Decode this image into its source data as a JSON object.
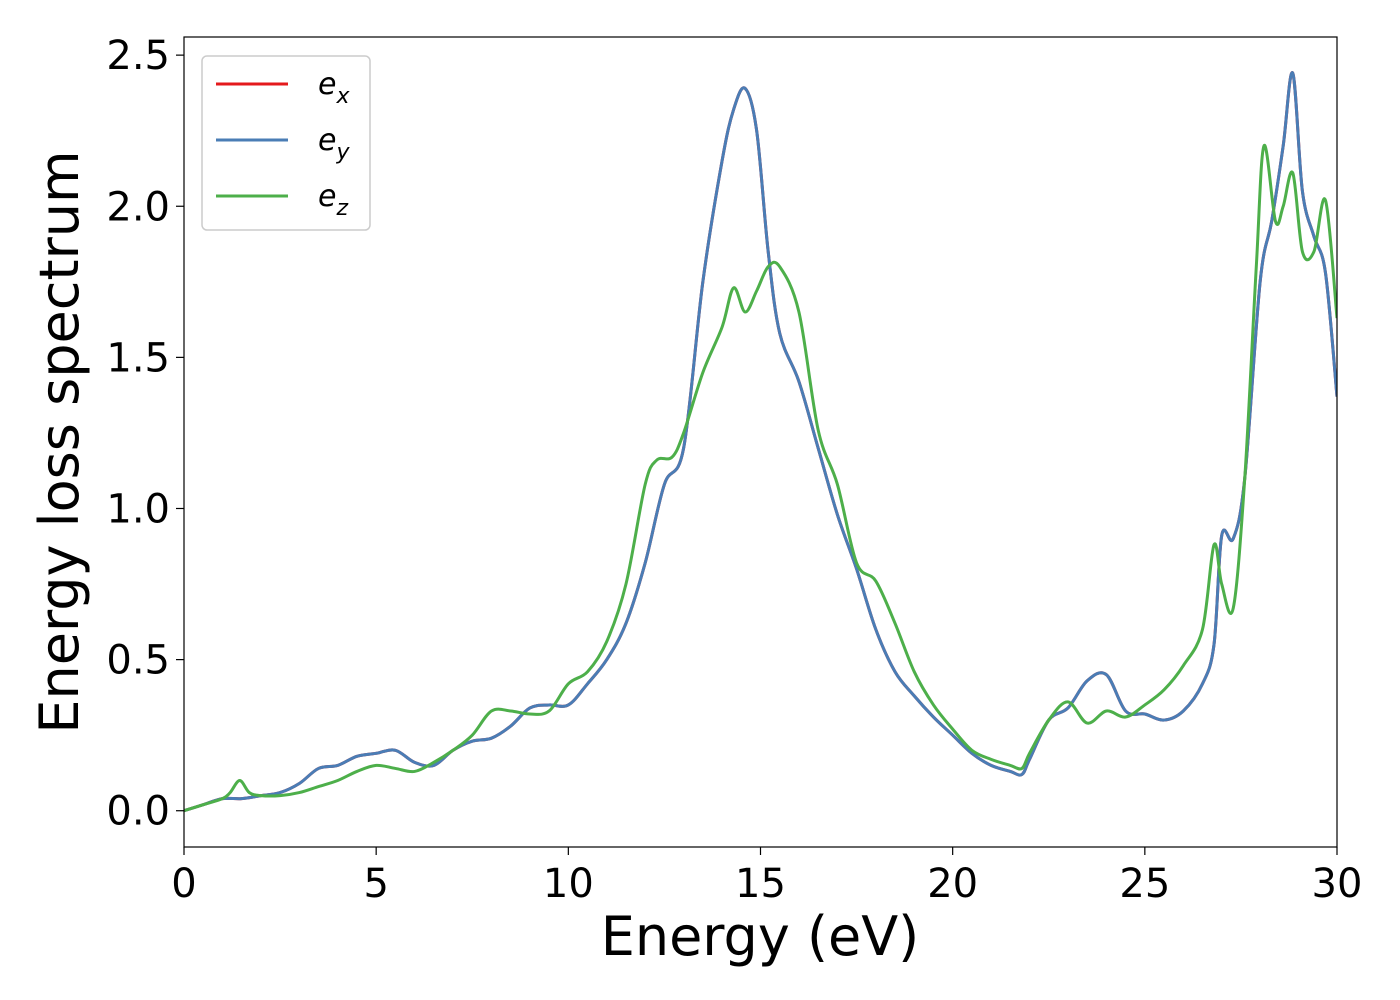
{
  "chart_data": {
    "type": "line",
    "title": "",
    "xlabel": "Energy (eV)",
    "ylabel": "Energy loss spectrum",
    "xlim": [
      0,
      30
    ],
    "ylim": [
      -0.12,
      2.56
    ],
    "xticks": [
      0,
      5,
      10,
      15,
      20,
      25,
      30
    ],
    "xtick_labels": [
      "0",
      "5",
      "10",
      "15",
      "20",
      "25",
      "30"
    ],
    "yticks": [
      0.0,
      0.5,
      1.0,
      1.5,
      2.0,
      2.5
    ],
    "ytick_labels": [
      "0.0",
      "0.5",
      "1.0",
      "1.5",
      "2.0",
      "2.5"
    ],
    "grid": false,
    "legend_position": "top-left",
    "series": [
      {
        "name": "e_x",
        "label_base": "e",
        "label_sub": "x",
        "color": "#e41a1c",
        "x": [
          0,
          0.5,
          1.0,
          1.5,
          2.0,
          2.5,
          3.0,
          3.5,
          4.0,
          4.5,
          5.0,
          5.5,
          6.0,
          6.5,
          7.0,
          7.5,
          8.0,
          8.5,
          9.0,
          9.5,
          10.0,
          10.5,
          11.0,
          11.5,
          12.0,
          12.5,
          13.0,
          13.5,
          14.0,
          14.3,
          14.6,
          14.9,
          15.2,
          15.5,
          16.0,
          16.5,
          17.0,
          17.5,
          18.0,
          18.5,
          19.0,
          19.5,
          20.0,
          20.5,
          21.0,
          21.5,
          21.8,
          22.0,
          22.5,
          23.0,
          23.5,
          24.0,
          24.5,
          25.0,
          25.5,
          26.0,
          26.5,
          26.8,
          27.0,
          27.3,
          27.6,
          28.0,
          28.3,
          28.6,
          28.85,
          29.1,
          29.4,
          29.7,
          30.0
        ],
        "values": [
          0.0,
          0.02,
          0.04,
          0.04,
          0.05,
          0.06,
          0.09,
          0.14,
          0.15,
          0.18,
          0.19,
          0.2,
          0.16,
          0.15,
          0.2,
          0.23,
          0.24,
          0.28,
          0.34,
          0.35,
          0.35,
          0.42,
          0.5,
          0.62,
          0.82,
          1.08,
          1.2,
          1.75,
          2.15,
          2.32,
          2.39,
          2.25,
          1.85,
          1.58,
          1.42,
          1.2,
          0.98,
          0.8,
          0.6,
          0.46,
          0.38,
          0.31,
          0.25,
          0.19,
          0.15,
          0.13,
          0.12,
          0.17,
          0.3,
          0.34,
          0.43,
          0.45,
          0.33,
          0.32,
          0.3,
          0.33,
          0.42,
          0.55,
          0.91,
          0.9,
          1.1,
          1.75,
          1.95,
          2.2,
          2.44,
          2.05,
          1.9,
          1.78,
          1.37
        ]
      },
      {
        "name": "e_y",
        "label_base": "e",
        "label_sub": "y",
        "color": "#4a7db5",
        "x": [
          0,
          0.5,
          1.0,
          1.5,
          2.0,
          2.5,
          3.0,
          3.5,
          4.0,
          4.5,
          5.0,
          5.5,
          6.0,
          6.5,
          7.0,
          7.5,
          8.0,
          8.5,
          9.0,
          9.5,
          10.0,
          10.5,
          11.0,
          11.5,
          12.0,
          12.5,
          13.0,
          13.5,
          14.0,
          14.3,
          14.6,
          14.9,
          15.2,
          15.5,
          16.0,
          16.5,
          17.0,
          17.5,
          18.0,
          18.5,
          19.0,
          19.5,
          20.0,
          20.5,
          21.0,
          21.5,
          21.8,
          22.0,
          22.5,
          23.0,
          23.5,
          24.0,
          24.5,
          25.0,
          25.5,
          26.0,
          26.5,
          26.8,
          27.0,
          27.3,
          27.6,
          28.0,
          28.3,
          28.6,
          28.85,
          29.1,
          29.4,
          29.7,
          30.0
        ],
        "values": [
          0.0,
          0.02,
          0.04,
          0.04,
          0.05,
          0.06,
          0.09,
          0.14,
          0.15,
          0.18,
          0.19,
          0.2,
          0.16,
          0.15,
          0.2,
          0.23,
          0.24,
          0.28,
          0.34,
          0.35,
          0.35,
          0.42,
          0.5,
          0.62,
          0.82,
          1.08,
          1.2,
          1.75,
          2.15,
          2.32,
          2.39,
          2.25,
          1.85,
          1.58,
          1.42,
          1.2,
          0.98,
          0.8,
          0.6,
          0.46,
          0.38,
          0.31,
          0.25,
          0.19,
          0.15,
          0.13,
          0.12,
          0.17,
          0.3,
          0.34,
          0.43,
          0.45,
          0.33,
          0.32,
          0.3,
          0.33,
          0.42,
          0.55,
          0.91,
          0.9,
          1.1,
          1.75,
          1.95,
          2.2,
          2.44,
          2.05,
          1.9,
          1.78,
          1.37
        ]
      },
      {
        "name": "e_z",
        "label_base": "e",
        "label_sub": "z",
        "color": "#4daf4a",
        "x": [
          0,
          0.5,
          1.0,
          1.2,
          1.45,
          1.7,
          2.0,
          2.5,
          3.0,
          3.5,
          4.0,
          4.5,
          5.0,
          5.5,
          6.0,
          6.5,
          7.0,
          7.5,
          8.0,
          8.5,
          9.0,
          9.5,
          10.0,
          10.5,
          11.0,
          11.5,
          12.0,
          12.3,
          12.7,
          13.0,
          13.5,
          14.0,
          14.3,
          14.6,
          14.9,
          15.2,
          15.5,
          16.0,
          16.5,
          17.0,
          17.5,
          18.0,
          18.5,
          19.0,
          19.5,
          20.0,
          20.5,
          21.0,
          21.5,
          21.8,
          22.0,
          22.5,
          23.0,
          23.5,
          24.0,
          24.5,
          25.0,
          25.5,
          26.0,
          26.5,
          26.8,
          27.0,
          27.3,
          27.6,
          27.9,
          28.1,
          28.4,
          28.6,
          28.85,
          29.1,
          29.4,
          29.7,
          30.0
        ],
        "values": [
          0.0,
          0.02,
          0.04,
          0.06,
          0.1,
          0.06,
          0.05,
          0.05,
          0.06,
          0.08,
          0.1,
          0.13,
          0.15,
          0.14,
          0.13,
          0.16,
          0.2,
          0.25,
          0.33,
          0.33,
          0.32,
          0.33,
          0.42,
          0.46,
          0.56,
          0.75,
          1.08,
          1.16,
          1.17,
          1.25,
          1.45,
          1.6,
          1.73,
          1.65,
          1.72,
          1.8,
          1.8,
          1.65,
          1.26,
          1.08,
          0.82,
          0.76,
          0.62,
          0.46,
          0.35,
          0.27,
          0.2,
          0.17,
          0.15,
          0.14,
          0.19,
          0.3,
          0.36,
          0.29,
          0.33,
          0.31,
          0.35,
          0.4,
          0.48,
          0.6,
          0.88,
          0.75,
          0.67,
          1.1,
          1.8,
          2.2,
          1.95,
          2.0,
          2.11,
          1.85,
          1.85,
          2.02,
          1.63
        ]
      }
    ]
  }
}
